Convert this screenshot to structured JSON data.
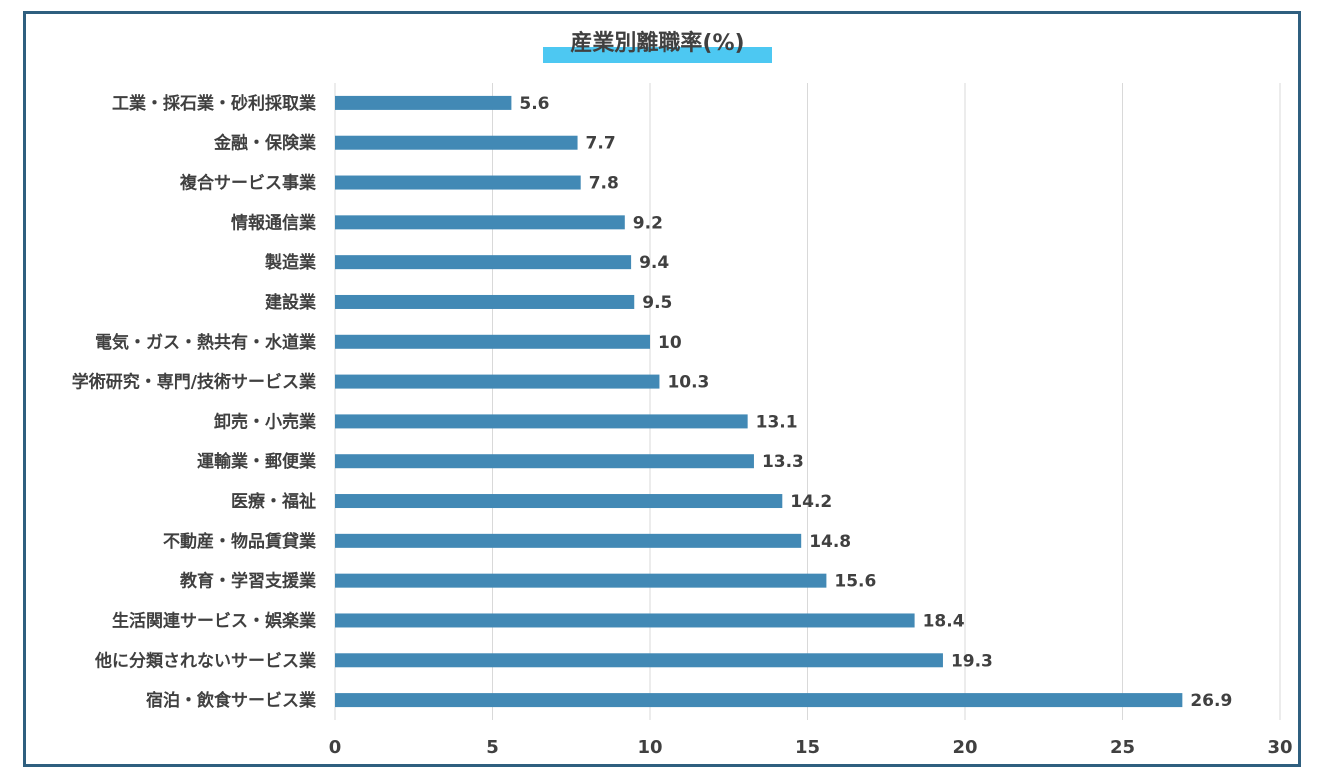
{
  "chart_data": {
    "type": "bar",
    "orientation": "horizontal",
    "title": "産業別離職率(%)",
    "categories": [
      "工業・採石業・砂利採取業",
      "金融・保険業",
      "複合サービス事業",
      "情報通信業",
      "製造業",
      "建設業",
      "電気・ガス・熱共有・水道業",
      "学術研究・専門/技術サービス業",
      "卸売・小売業",
      "運輸業・郵便業",
      "医療・福祉",
      "不動産・物品賃貸業",
      "教育・学習支援業",
      "生活関連サービス・娯楽業",
      "他に分類されないサービス業",
      "宿泊・飲食サービス業"
    ],
    "values": [
      5.6,
      7.7,
      7.8,
      9.2,
      9.4,
      9.5,
      10,
      10.3,
      13.1,
      13.3,
      14.2,
      14.8,
      15.6,
      18.4,
      19.3,
      26.9
    ],
    "xlim": [
      0,
      30
    ],
    "xticks": [
      "0",
      "5",
      "10",
      "15",
      "20",
      "25",
      "30"
    ],
    "grid": "vertical",
    "legend": "none",
    "colors": {
      "bar": "#4289b5",
      "title_highlight": "#4dc8f2",
      "frame": "#2f5f7f"
    }
  }
}
